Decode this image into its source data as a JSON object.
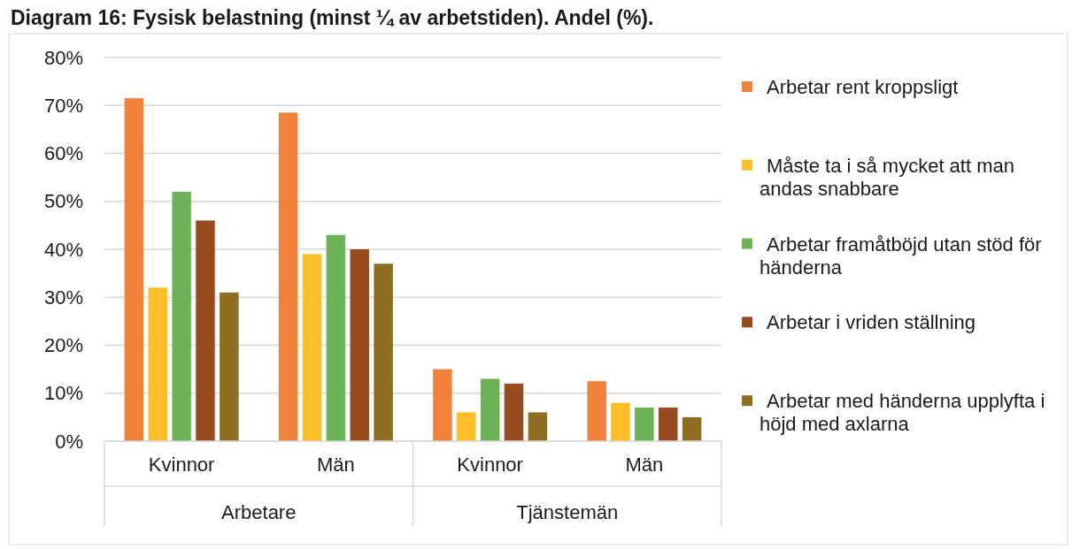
{
  "chart_data": {
    "type": "bar",
    "title": "Diagram 16: Fysisk belastning (minst ¼ av arbetstiden). Andel (%).",
    "categories": [
      "Kvinnor",
      "Män",
      "Kvinnor",
      "Män"
    ],
    "annotations": [
      "Arbetare",
      "Tjänstemän"
    ],
    "series": [
      {
        "name": "Arbetar rent kroppsligt",
        "color": "#f0823c",
        "values": [
          0.715,
          0.685,
          0.15,
          0.125
        ]
      },
      {
        "name": "Måste ta i så mycket att man andas snabbare",
        "color": "#fdbe28",
        "values": [
          0.32,
          0.39,
          0.06,
          0.08
        ]
      },
      {
        "name": "Arbetar framåtböjd utan stöd för händerna",
        "color": "#6cb257",
        "values": [
          0.52,
          0.43,
          0.13,
          0.07
        ]
      },
      {
        "name": "Arbetar i vriden ställning",
        "color": "#994b20",
        "values": [
          0.46,
          0.4,
          0.12,
          0.07
        ]
      },
      {
        "name": "Arbetar med händerna upplyfta i höjd med axlarna",
        "color": "#8e6f22",
        "values": [
          0.31,
          0.37,
          0.06,
          0.05
        ]
      }
    ],
    "ylim": [
      0,
      0.8
    ],
    "yticks": [
      {
        "value": 0,
        "label": "0%"
      },
      {
        "value": 0.1,
        "label": "10%"
      },
      {
        "value": 0.2,
        "label": "20%"
      },
      {
        "value": 0.3,
        "label": "30%"
      },
      {
        "value": 0.4,
        "label": "40%"
      },
      {
        "value": 0.5,
        "label": "50%"
      },
      {
        "value": 0.6,
        "label": "60%"
      },
      {
        "value": 0.7,
        "label": "70%"
      },
      {
        "value": 0.8,
        "label": "80%"
      }
    ],
    "grid": "y",
    "legend": "right"
  }
}
